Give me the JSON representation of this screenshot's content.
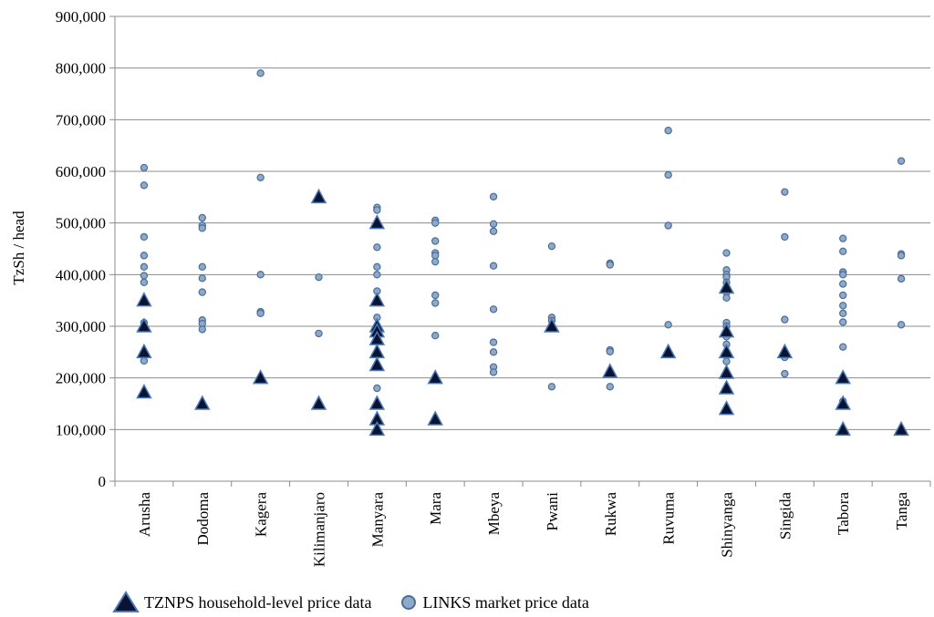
{
  "chart_data": {
    "type": "scatter",
    "ylabel": "TzSh / head",
    "xlabel": "",
    "ylim": [
      0,
      900000
    ],
    "yticks": [
      0,
      100000,
      200000,
      300000,
      400000,
      500000,
      600000,
      700000,
      800000,
      900000
    ],
    "ytick_labels": [
      "0",
      "100,000",
      "200,000",
      "300,000",
      "400,000",
      "500,000",
      "600,000",
      "700,000",
      "800,000",
      "900,000"
    ],
    "grid": true,
    "legend_position": "bottom-left",
    "categories": [
      "Arusha",
      "Dodoma",
      "Kagera",
      "Kilimanjaro",
      "Manyara",
      "Mara",
      "Mbeya",
      "Pwani",
      "Rukwa",
      "Ruvuma",
      "Shinyanga",
      "Singida",
      "Tabora",
      "Tanga"
    ],
    "series": [
      {
        "name": "LINKS market price data",
        "marker": "circle",
        "color": "#8fa9c8",
        "edge": "#4a6e9a",
        "values": [
          [
            607000,
            573000,
            473000,
            437000,
            415000,
            398000,
            385000,
            307000,
            300000,
            233000
          ],
          [
            510000,
            495000,
            490000,
            415000,
            393000,
            366000,
            312000,
            305000,
            294000
          ],
          [
            790000,
            588000,
            400000,
            328000,
            325000
          ],
          [
            395000,
            286000
          ],
          [
            530000,
            525000,
            500000,
            453000,
            415000,
            400000,
            368000,
            317000,
            300000,
            278000,
            180000
          ],
          [
            505000,
            500000,
            465000,
            442000,
            437000,
            425000,
            360000,
            345000,
            282000
          ],
          [
            551000,
            498000,
            484000,
            417000,
            333000,
            269000,
            250000,
            221000,
            211000
          ],
          [
            455000,
            317000,
            311000,
            183000
          ],
          [
            422000,
            419000,
            254000,
            251000,
            183000
          ],
          [
            679000,
            593000,
            495000,
            303000
          ],
          [
            442000,
            409000,
            400000,
            395000,
            385000,
            370000,
            365000,
            355000,
            307000,
            300000,
            285000,
            280000,
            265000,
            245000,
            232000
          ],
          [
            560000,
            473000,
            313000,
            240000,
            208000
          ],
          [
            470000,
            445000,
            405000,
            400000,
            382000,
            360000,
            340000,
            325000,
            308000,
            260000,
            155000
          ],
          [
            620000,
            440000,
            437000,
            392000,
            303000
          ]
        ]
      },
      {
        "name": "TZNPS household-level price data",
        "marker": "triangle",
        "color": "#0a1430",
        "edge": "#4a78b8",
        "values": [
          [
            350000,
            300000,
            250000,
            172000
          ],
          [
            150000
          ],
          [
            200000
          ],
          [
            550000,
            150000
          ],
          [
            500000,
            350000,
            300000,
            290000,
            275000,
            250000,
            225000,
            150000,
            120000,
            100000
          ],
          [
            200000,
            120000
          ],
          [],
          [
            300000
          ],
          [
            212000
          ],
          [
            250000
          ],
          [
            375000,
            290000,
            250000,
            210000,
            180000,
            140000
          ],
          [
            250000
          ],
          [
            200000,
            150000,
            100000
          ],
          [
            100000
          ]
        ]
      }
    ]
  }
}
